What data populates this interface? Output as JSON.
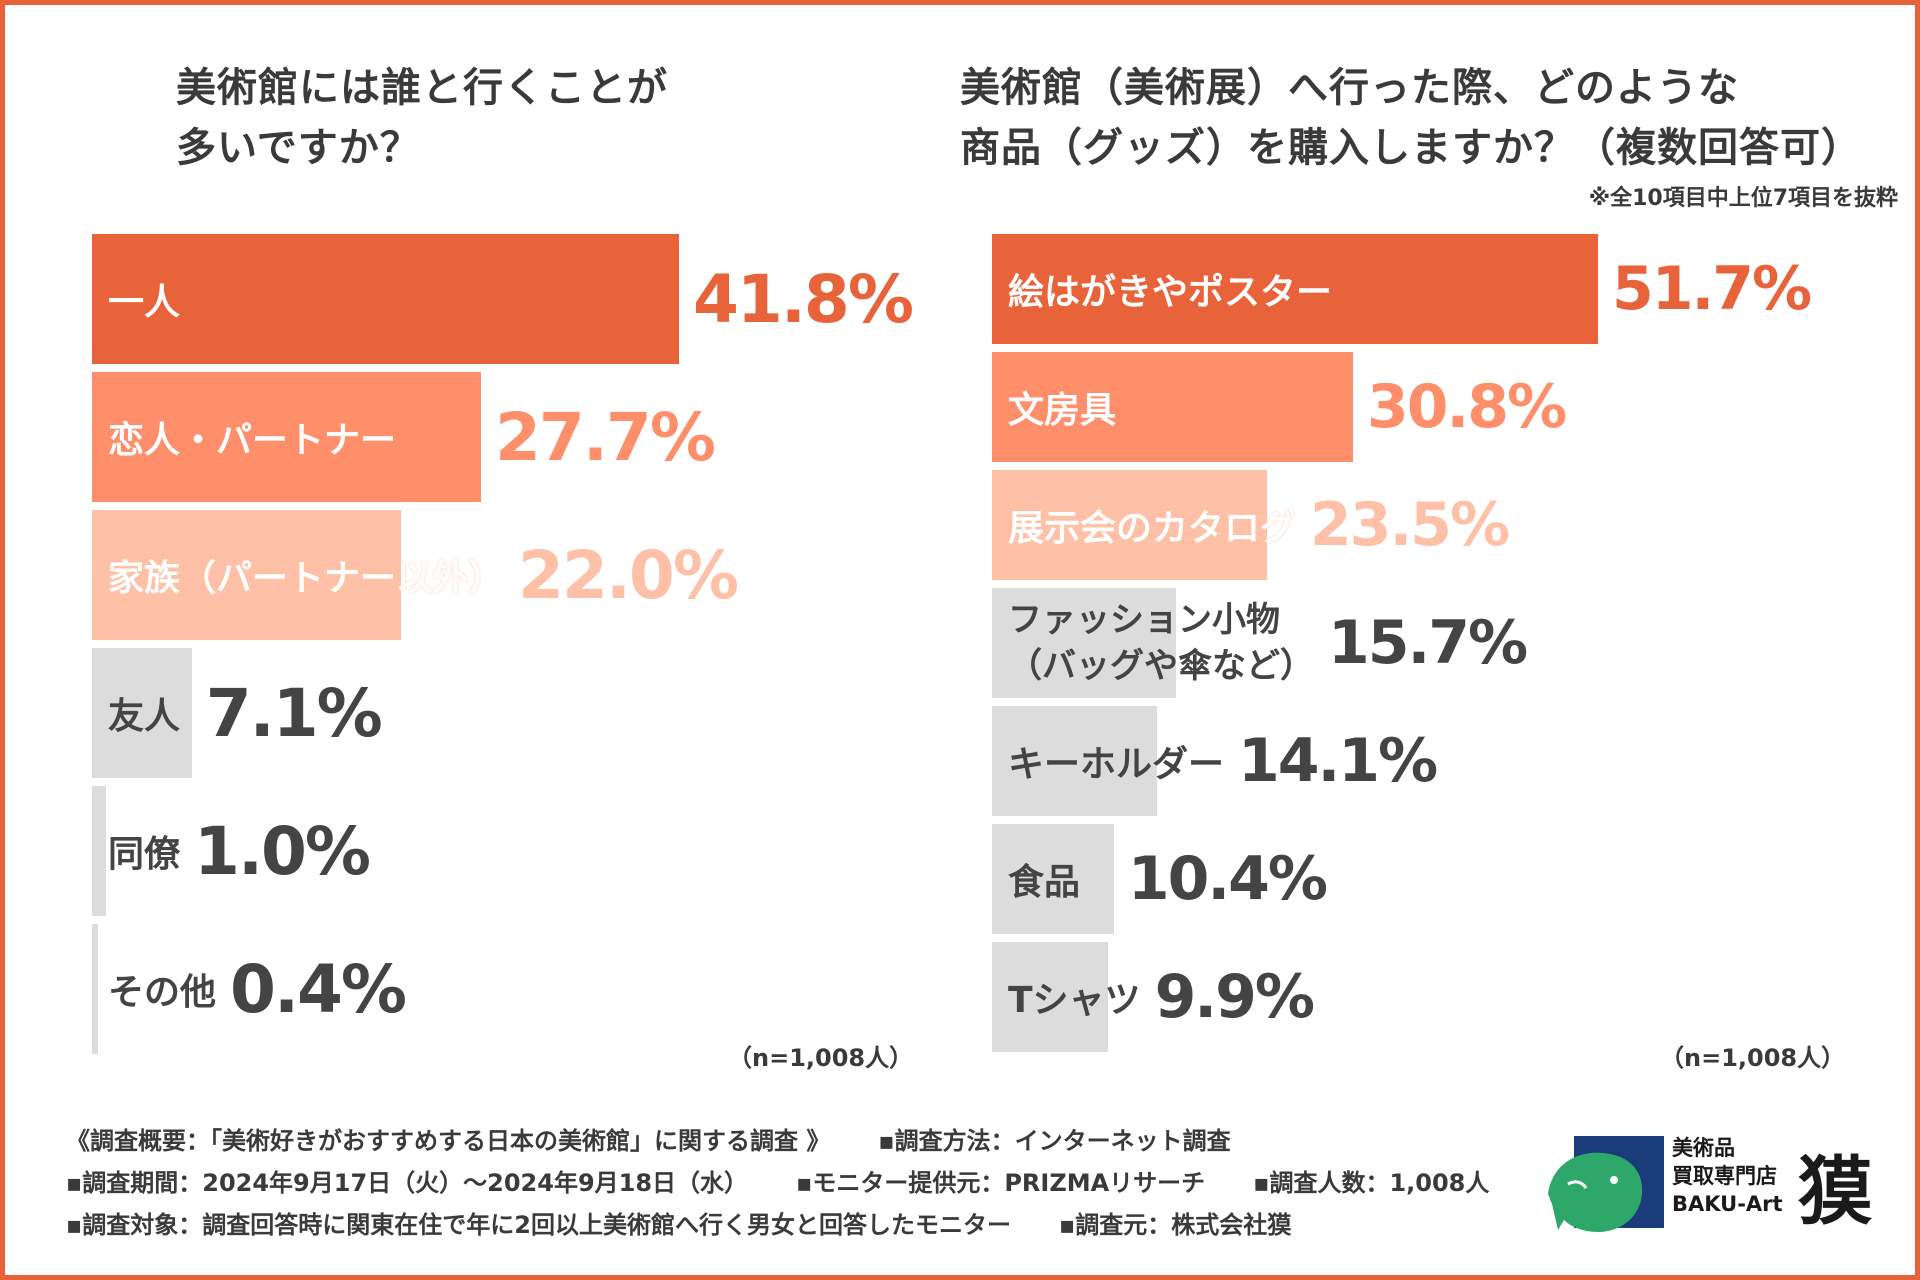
{
  "chart_data": [
    {
      "type": "bar",
      "orientation": "horizontal",
      "title_lines": [
        "美術館には誰と行くことが",
        "多いですか？"
      ],
      "categories": [
        "一人",
        "恋人・パートナー",
        "家族（パートナー以外）",
        "友人",
        "同僚",
        "その他"
      ],
      "values": [
        41.8,
        27.7,
        22.0,
        7.1,
        1.0,
        0.4
      ],
      "value_labels": [
        "41.8%",
        "27.7%",
        "22.0%",
        "7.1%",
        "1.0%",
        "0.4%"
      ],
      "bar_colors": [
        "#e8633a",
        "#ff8f6b",
        "#ffc0a8",
        "#dcdcdc",
        "#dcdcdc",
        "#dcdcdc"
      ],
      "value_colors": [
        "#e8633a",
        "#ff8f6b",
        "#ffc0a8",
        "#444444",
        "#444444",
        "#444444"
      ],
      "sample_size": "（n=1,008人）",
      "xlim": [
        0,
        41.8
      ]
    },
    {
      "type": "bar",
      "orientation": "horizontal",
      "title_lines": [
        "美術館（美術展）へ行った際、どのような",
        "商品（グッズ）を購入しますか？（複数回答可）"
      ],
      "note": "※全10項目中上位7項目を抜粋",
      "categories": [
        "絵はがきやポスター",
        "文房具",
        "展示会のカタログ",
        "ファッション小物\n（バッグや傘など）",
        "キーホルダー",
        "食品",
        "Tシャツ"
      ],
      "values": [
        51.7,
        30.8,
        23.5,
        15.7,
        14.1,
        10.4,
        9.9
      ],
      "value_labels": [
        "51.7%",
        "30.8%",
        "23.5%",
        "15.7%",
        "14.1%",
        "10.4%",
        "9.9%"
      ],
      "bar_colors": [
        "#e8633a",
        "#ff8f6b",
        "#ffc0a8",
        "#dcdcdc",
        "#dcdcdc",
        "#dcdcdc",
        "#dcdcdc"
      ],
      "value_colors": [
        "#e8633a",
        "#ff8f6b",
        "#ffc0a8",
        "#444444",
        "#444444",
        "#444444",
        "#444444"
      ],
      "sample_size": "（n=1,008人）",
      "xlim": [
        0,
        51.7
      ]
    }
  ],
  "footer": {
    "lines": [
      [
        "《調査概要：「美術好きがおすすめする日本の美術館」に関する調査 》",
        "▪調査方法：インターネット調査"
      ],
      [
        "▪調査期間：2024年9月17日（火）〜2024年9月18日（水）",
        "▪モニター提供元：PRIZMAリサーチ",
        "▪調査人数：1,008人"
      ],
      [
        "▪調査対象：調査回答時に関東在住で年に2回以上美術館へ行く男女と回答したモニター",
        "▪調査元：株式会社獏"
      ]
    ]
  },
  "logo": {
    "line1": "美術品",
    "line2": "買取専門店",
    "line3": "BAKU-Art",
    "kanji": "獏"
  },
  "colors": {
    "accent": "#e8633a",
    "mid": "#ff8f6b",
    "light": "#ffc0a8",
    "gray": "#dcdcdc",
    "logo_blue": "#1a3c7a",
    "logo_green": "#2ea86a"
  }
}
